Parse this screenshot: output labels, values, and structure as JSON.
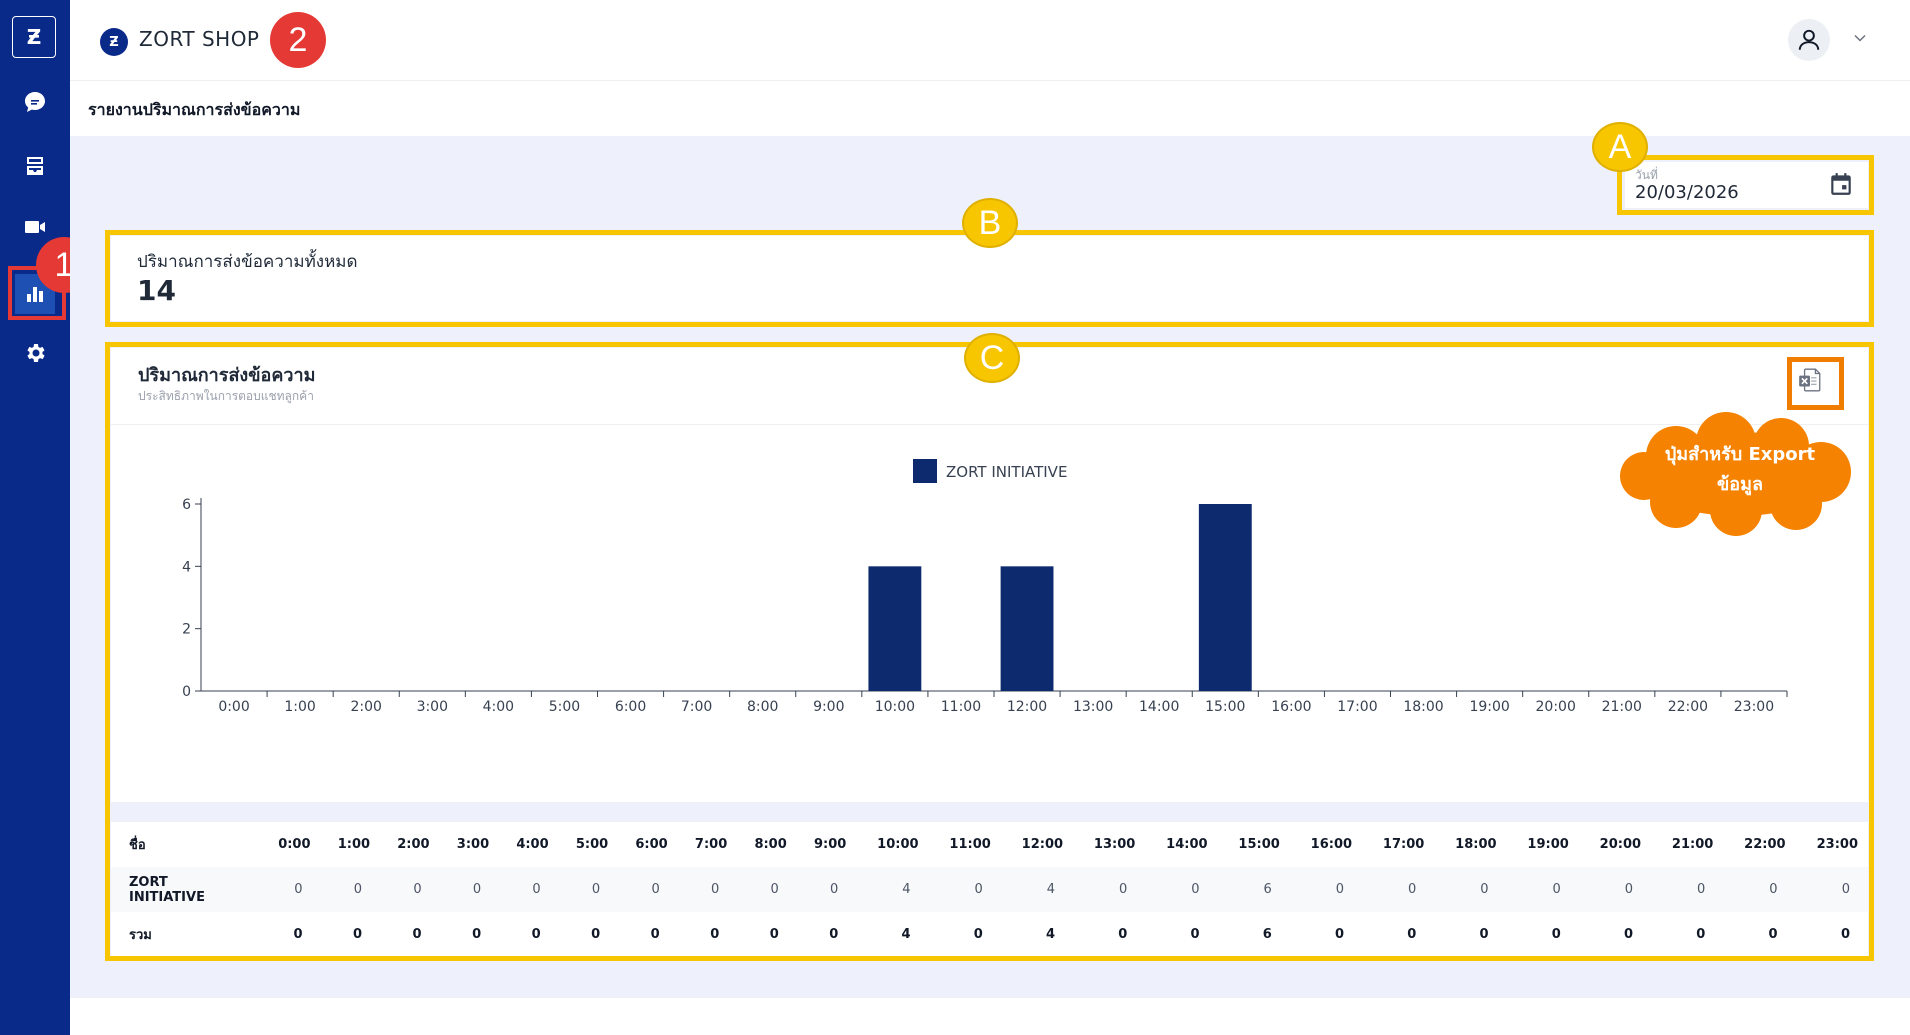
{
  "app": {
    "logo_text": "Ƶ"
  },
  "sidebar": {
    "items": [
      {
        "name": "chat-icon"
      },
      {
        "name": "inbox-icon"
      },
      {
        "name": "video-icon"
      },
      {
        "name": "bar-chart-icon",
        "active": true
      },
      {
        "name": "gear-icon"
      }
    ]
  },
  "header": {
    "shop_logo": "Ƶ",
    "shop_name": "ZORT SHOP"
  },
  "page": {
    "title": "รายงานปริมาณการส่งข้อความ"
  },
  "annotations": {
    "badge_1": "1",
    "badge_2": "2",
    "badge_a": "A",
    "badge_b": "B",
    "badge_c": "C",
    "cloud_line1": "ปุ่มสำหรับ Export",
    "cloud_line2": "ข้อมูล"
  },
  "date_filter": {
    "label": "วันที่",
    "value": "20/03/2026"
  },
  "summary": {
    "label": "ปริมาณการส่งข้อความทั้งหมด",
    "value": "14"
  },
  "chart_card": {
    "title": "ปริมาณการส่งข้อความ",
    "subtitle": "ประสิทธิภาพในการตอบแชทลูกค้า"
  },
  "chart_data": {
    "type": "bar",
    "categories": [
      "0:00",
      "1:00",
      "2:00",
      "3:00",
      "4:00",
      "5:00",
      "6:00",
      "7:00",
      "8:00",
      "9:00",
      "10:00",
      "11:00",
      "12:00",
      "13:00",
      "14:00",
      "15:00",
      "16:00",
      "17:00",
      "18:00",
      "19:00",
      "20:00",
      "21:00",
      "22:00",
      "23:00"
    ],
    "series": [
      {
        "name": "ZORT INITIATIVE",
        "values": [
          0,
          0,
          0,
          0,
          0,
          0,
          0,
          0,
          0,
          0,
          4,
          0,
          4,
          0,
          0,
          6,
          0,
          0,
          0,
          0,
          0,
          0,
          0,
          0
        ],
        "color": "#0d2a6e"
      }
    ],
    "yticks": [
      0,
      2,
      4,
      6
    ],
    "ylim": [
      0,
      6
    ],
    "legend": "top-center"
  },
  "table": {
    "name_header": "ชื่อ",
    "headers": [
      "0:00",
      "1:00",
      "2:00",
      "3:00",
      "4:00",
      "5:00",
      "6:00",
      "7:00",
      "8:00",
      "9:00",
      "10:00",
      "11:00",
      "12:00",
      "13:00",
      "14:00",
      "15:00",
      "16:00",
      "17:00",
      "18:00",
      "19:00",
      "20:00",
      "21:00",
      "22:00",
      "23:00"
    ],
    "rows": [
      {
        "name": "ZORT INITIATIVE",
        "values": [
          "0",
          "0",
          "0",
          "0",
          "0",
          "0",
          "0",
          "0",
          "0",
          "0",
          "4",
          "0",
          "4",
          "0",
          "0",
          "6",
          "0",
          "0",
          "0",
          "0",
          "0",
          "0",
          "0",
          "0"
        ]
      }
    ],
    "total": {
      "name": "รวม",
      "values": [
        "0",
        "0",
        "0",
        "0",
        "0",
        "0",
        "0",
        "0",
        "0",
        "0",
        "4",
        "0",
        "4",
        "0",
        "0",
        "6",
        "0",
        "0",
        "0",
        "0",
        "0",
        "0",
        "0",
        "0"
      ]
    }
  }
}
